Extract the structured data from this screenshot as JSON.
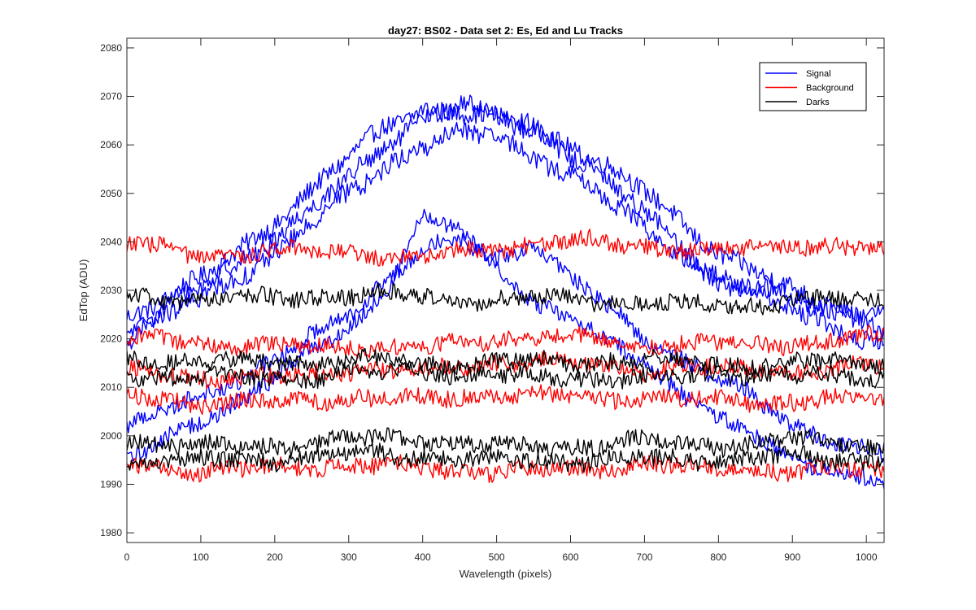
{
  "chart_data": {
    "type": "line",
    "title": "day27: BS02 - Data set 2: Es, Ed and Lu Tracks",
    "xlabel": "Wavelength (pixels)",
    "ylabel": "EdTop (ADU)",
    "xlim": [
      0,
      1024
    ],
    "ylim": [
      1978,
      2082
    ],
    "xticks": [
      0,
      100,
      200,
      300,
      400,
      500,
      600,
      700,
      800,
      900,
      1000
    ],
    "yticks": [
      1980,
      1990,
      2000,
      2010,
      2020,
      2030,
      2040,
      2050,
      2060,
      2070,
      2080
    ],
    "grid": false,
    "legend_position": "top-right",
    "legend": [
      {
        "label": "Signal",
        "color": "#0000ff"
      },
      {
        "label": "Background",
        "color": "#ff0000"
      },
      {
        "label": "Darks",
        "color": "#000000"
      }
    ],
    "series": [
      {
        "group": "Signal",
        "color": "#0000ff",
        "noise": 1.8,
        "x": [
          0,
          100,
          200,
          300,
          350,
          400,
          450,
          500,
          550,
          600,
          700,
          800,
          900,
          1024
        ],
        "y": [
          2025,
          2032,
          2044,
          2057,
          2064,
          2068,
          2067,
          2065,
          2063,
          2060,
          2050,
          2038,
          2030,
          2022
        ]
      },
      {
        "group": "Signal",
        "color": "#0000ff",
        "noise": 1.8,
        "x": [
          0,
          100,
          200,
          300,
          350,
          400,
          450,
          500,
          550,
          600,
          700,
          800,
          900,
          1024
        ],
        "y": [
          2022,
          2030,
          2041,
          2053,
          2060,
          2066,
          2068,
          2066,
          2064,
          2058,
          2046,
          2033,
          2028,
          2025
        ]
      },
      {
        "group": "Signal",
        "color": "#0000ff",
        "noise": 1.8,
        "x": [
          0,
          100,
          200,
          300,
          350,
          400,
          450,
          500,
          550,
          600,
          700,
          800,
          900,
          1024
        ],
        "y": [
          2020,
          2028,
          2038,
          2050,
          2056,
          2060,
          2062,
          2061,
          2058,
          2054,
          2043,
          2032,
          2026,
          2018
        ]
      },
      {
        "group": "Signal",
        "color": "#0000ff",
        "noise": 1.6,
        "x": [
          0,
          100,
          200,
          300,
          350,
          400,
          450,
          500,
          550,
          600,
          700,
          800,
          900,
          1024
        ],
        "y": [
          2002,
          2008,
          2016,
          2025,
          2032,
          2039,
          2040,
          2036,
          2040,
          2033,
          2020,
          2012,
          2002,
          1996
        ]
      },
      {
        "group": "Signal",
        "color": "#0000ff",
        "noise": 1.6,
        "x": [
          0,
          100,
          200,
          300,
          350,
          400,
          450,
          500,
          550,
          600,
          700,
          800,
          900,
          1024
        ],
        "y": [
          1995,
          2003,
          2012,
          2022,
          2030,
          2045,
          2042,
          2035,
          2028,
          2024,
          2015,
          2003,
          1996,
          1990
        ]
      },
      {
        "group": "Background",
        "color": "#ff0000",
        "noise": 1.6,
        "x": [
          0,
          100,
          200,
          300,
          400,
          500,
          600,
          700,
          800,
          900,
          1024
        ],
        "y": [
          2040,
          2037,
          2038,
          2038,
          2037,
          2039,
          2040,
          2039,
          2038,
          2040,
          2038
        ]
      },
      {
        "group": "Background",
        "color": "#ff0000",
        "noise": 1.6,
        "x": [
          0,
          100,
          200,
          300,
          400,
          500,
          600,
          700,
          800,
          900,
          1024
        ],
        "y": [
          2020,
          2019,
          2018,
          2019,
          2018,
          2020,
          2020,
          2019,
          2019,
          2019,
          2020
        ]
      },
      {
        "group": "Background",
        "color": "#ff0000",
        "noise": 1.6,
        "x": [
          0,
          100,
          200,
          300,
          400,
          500,
          600,
          700,
          800,
          900,
          1024
        ],
        "y": [
          2013,
          2012,
          2012,
          2014,
          2013,
          2015,
          2015,
          2014,
          2014,
          2013,
          2014
        ]
      },
      {
        "group": "Background",
        "color": "#ff0000",
        "noise": 1.6,
        "x": [
          0,
          100,
          200,
          300,
          400,
          500,
          600,
          700,
          800,
          900,
          1024
        ],
        "y": [
          2008,
          2007,
          2007,
          2008,
          2007,
          2009,
          2008,
          2008,
          2007,
          2007,
          2008
        ]
      },
      {
        "group": "Background",
        "color": "#ff0000",
        "noise": 1.6,
        "x": [
          0,
          100,
          200,
          300,
          400,
          500,
          600,
          700,
          800,
          900,
          1024
        ],
        "y": [
          1994,
          1993,
          1993,
          1994,
          1993,
          1993,
          1993,
          1994,
          1993,
          1993,
          1993
        ]
      },
      {
        "group": "Darks",
        "color": "#000000",
        "noise": 1.6,
        "x": [
          0,
          100,
          200,
          300,
          400,
          500,
          600,
          700,
          800,
          900,
          1024
        ],
        "y": [
          2029,
          2028,
          2028,
          2029,
          2029,
          2028,
          2028,
          2027,
          2027,
          2028,
          2028
        ]
      },
      {
        "group": "Darks",
        "color": "#000000",
        "noise": 1.6,
        "x": [
          0,
          100,
          200,
          300,
          400,
          500,
          600,
          700,
          800,
          900,
          1024
        ],
        "y": [
          2016,
          2015,
          2015,
          2016,
          2015,
          2015,
          2015,
          2016,
          2015,
          2015,
          2015
        ]
      },
      {
        "group": "Darks",
        "color": "#000000",
        "noise": 1.6,
        "x": [
          0,
          100,
          200,
          300,
          400,
          500,
          600,
          700,
          800,
          900,
          1024
        ],
        "y": [
          2012,
          2012,
          2012,
          2013,
          2013,
          2012,
          2012,
          2012,
          2013,
          2012,
          2012
        ]
      },
      {
        "group": "Darks",
        "color": "#000000",
        "noise": 1.6,
        "x": [
          0,
          100,
          200,
          300,
          400,
          500,
          600,
          700,
          800,
          900,
          1024
        ],
        "y": [
          1999,
          1998,
          1998,
          1999,
          1999,
          1998,
          1998,
          1999,
          1998,
          1999,
          1998
        ]
      },
      {
        "group": "Darks",
        "color": "#000000",
        "noise": 1.6,
        "x": [
          0,
          100,
          200,
          300,
          400,
          500,
          600,
          700,
          800,
          900,
          1024
        ],
        "y": [
          1995,
          1995,
          1995,
          1996,
          1996,
          1995,
          1995,
          1995,
          1995,
          1996,
          1995
        ]
      }
    ]
  }
}
